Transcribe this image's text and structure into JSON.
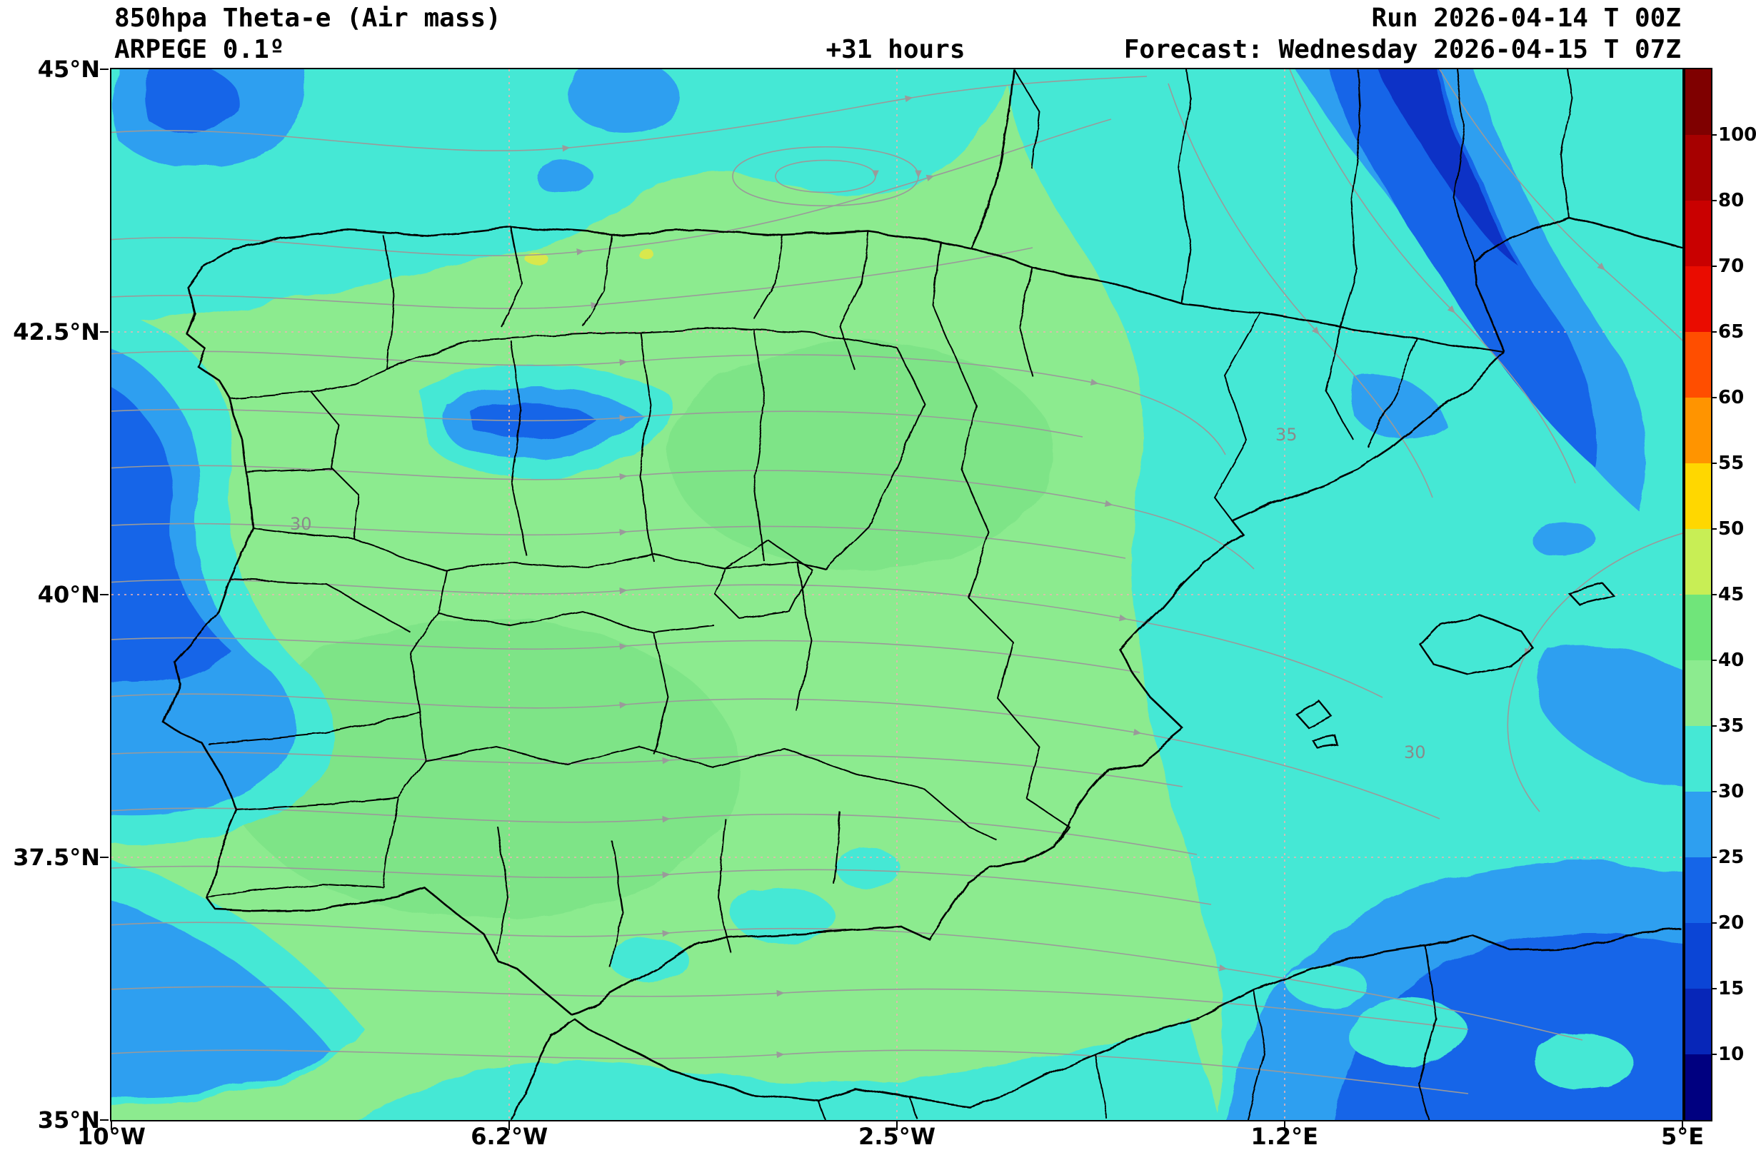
{
  "header": {
    "title": "850hpa Theta-e (Air mass)",
    "model": "ARPEGE 0.1º",
    "lead_time": "+31 hours",
    "run": "Run 2026-04-14 T 00Z",
    "forecast": "Forecast: Wednesday 2026-04-15 T 07Z"
  },
  "axes": {
    "y_ticks": [
      {
        "label": "45°N",
        "pos": 0
      },
      {
        "label": "42.5°N",
        "pos": 0.25
      },
      {
        "label": "40°N",
        "pos": 0.5
      },
      {
        "label": "37.5°N",
        "pos": 0.75
      },
      {
        "label": "35°N",
        "pos": 1
      }
    ],
    "x_ticks": [
      {
        "label": "10°W",
        "pos": 0
      },
      {
        "label": "6.2°W",
        "pos": 0.2533
      },
      {
        "label": "2.5°W",
        "pos": 0.5
      },
      {
        "label": "1.2°E",
        "pos": 0.7467
      },
      {
        "label": "5°E",
        "pos": 1
      }
    ]
  },
  "colorbar": {
    "tick_labels": [
      "100",
      "80",
      "70",
      "65",
      "60",
      "55",
      "50",
      "45",
      "40",
      "35",
      "30",
      "25",
      "20",
      "15",
      "10"
    ],
    "segments_top_to_bottom": [
      "#7f0000",
      "#a60000",
      "#c90000",
      "#ea0c00",
      "#ff4e00",
      "#ff9400",
      "#ffd700",
      "#c8ee55",
      "#70e57a",
      "#8ceb8f",
      "#45e8d5",
      "#2e9ff0",
      "#1565e8",
      "#0b45d6",
      "#0726b8",
      "#000080"
    ]
  },
  "map": {
    "fill_colors": {
      "green": "#8ceb8f",
      "green2": "#7ee487",
      "cyan": "#45e8d5",
      "blue1": "#2e9ff0",
      "blue2": "#1565e8",
      "blue3": "#0733c6",
      "yellow": "#d8e84e"
    },
    "stream_color": "#9a9a9a",
    "border_color": "#000000",
    "grid_color": "#efb3b3",
    "contour_labels": [
      "30",
      "35",
      "30"
    ]
  }
}
